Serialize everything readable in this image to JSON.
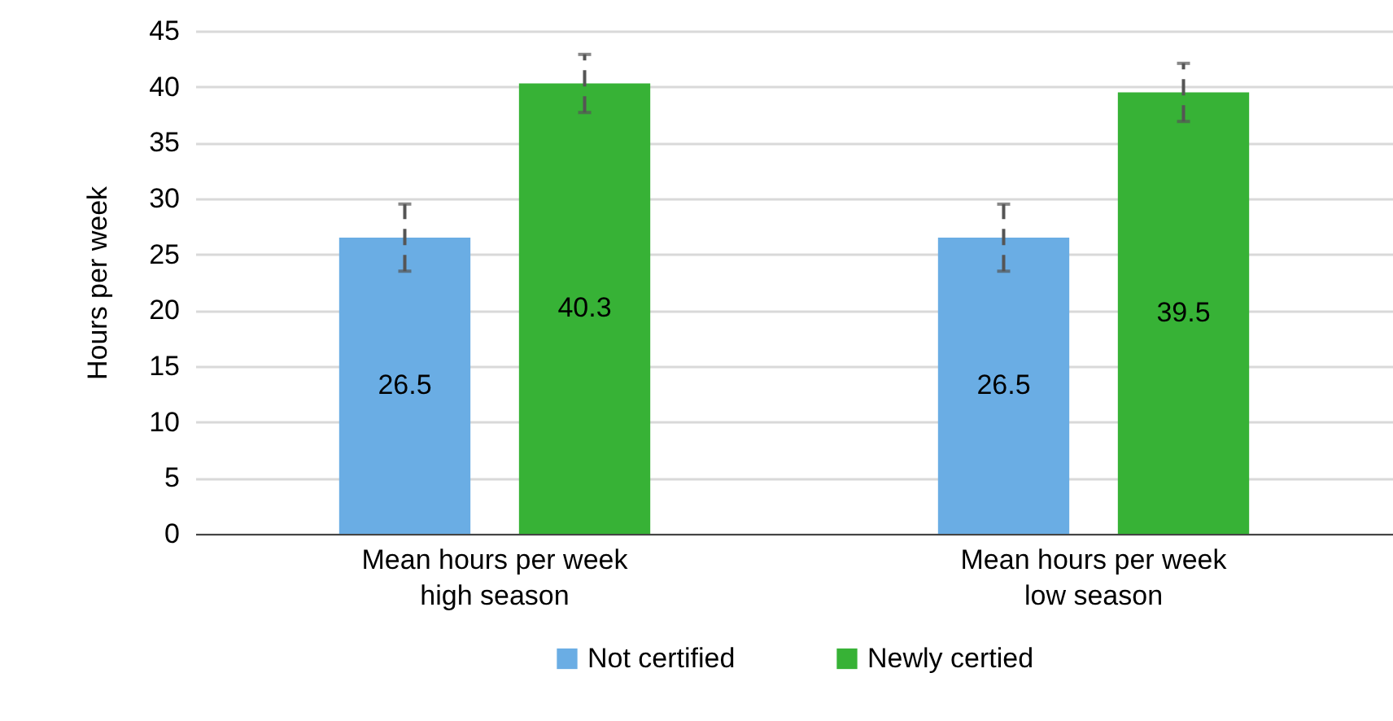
{
  "chart_data": {
    "type": "bar",
    "ylabel": "Hours per week",
    "categories": [
      "Mean hours per week\nhigh season",
      "Mean hours per week\nlow season"
    ],
    "series": [
      {
        "name": "Not certified",
        "color": "#6aade4",
        "values": [
          26.5,
          26.5
        ],
        "errors": [
          3,
          3
        ]
      },
      {
        "name": "Newly certied",
        "color": "#37b236",
        "values": [
          40.3,
          39.5
        ],
        "errors": [
          2.6,
          2.6
        ]
      }
    ],
    "ylim": [
      0,
      45
    ],
    "yticks": [
      0,
      5,
      10,
      15,
      20,
      25,
      30,
      35,
      40,
      45
    ],
    "grid": "y",
    "legend": "bottom",
    "data_labels": true
  }
}
